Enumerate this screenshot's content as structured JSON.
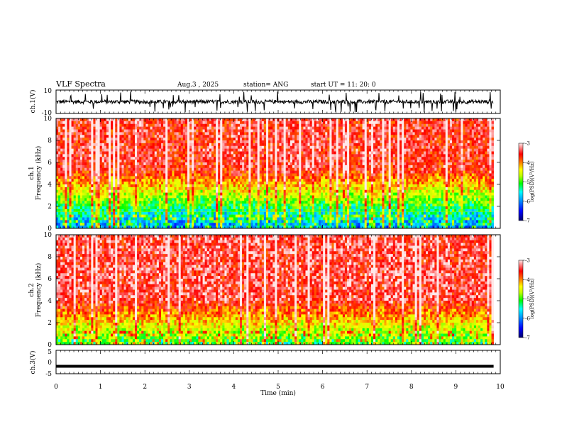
{
  "header": {
    "title": "VLF Spectra",
    "date": "Aug.3 , 2025",
    "station": "station= ANG",
    "start": "start UT = 11: 20: 0"
  },
  "chart_data": [
    {
      "name": "ch1-waveform",
      "type": "line",
      "title": "VLF Spectra",
      "ylabel": "ch.1(V)",
      "ylim": [
        -10,
        10
      ],
      "yticks": [
        "10",
        "-10"
      ],
      "xlim": [
        0,
        10
      ],
      "trace_color": "#000000",
      "mean_value": 0,
      "description": "ch.1 voltage waveform, noisy signal around 0 V with spikes"
    },
    {
      "name": "ch1-spectrogram",
      "type": "heatmap",
      "ylabel": "Frequency (kHz)",
      "channel_label": "ch.1",
      "ylim": [
        0,
        10
      ],
      "yticks": [
        "0",
        "2",
        "4",
        "6",
        "8",
        "10"
      ],
      "xlim": [
        0,
        9.85
      ],
      "colorbar": {
        "label": "log(PSD)(V²/Hz)",
        "range": [
          -7,
          -3
        ],
        "ticks": [
          "-3",
          "-4",
          "-5",
          "-6",
          "-7"
        ]
      },
      "dominant_high_freq": "red (about -3.5)",
      "dominant_low_freq": "green/blue (about -5 to -6.5)"
    },
    {
      "name": "ch2-spectrogram",
      "type": "heatmap",
      "ylabel": "Frequency (kHz)",
      "channel_label": "ch.2",
      "ylim": [
        0,
        10
      ],
      "yticks": [
        "0",
        "2",
        "4",
        "6",
        "8",
        "10"
      ],
      "xlim": [
        0,
        9.85
      ],
      "colorbar": {
        "label": "log(PSD)(V²/Hz)",
        "range": [
          -7,
          -3
        ],
        "ticks": [
          "-3",
          "-4",
          "-5",
          "-6",
          "-7"
        ]
      },
      "dominant_high_freq": "red (about -3.4)",
      "dominant_low_freq": "green/yellow (about -4.8 to -5.8)"
    },
    {
      "name": "ch3-waveform",
      "type": "line",
      "ylabel": "ch.3(V)",
      "ylim": [
        -5,
        5
      ],
      "yticks": [
        "5",
        "0",
        "-5"
      ],
      "xlim": [
        0,
        10
      ],
      "constant_value": -1.8,
      "trace_color": "#000000"
    }
  ],
  "xaxis": {
    "label": "Time (min)",
    "ticks": [
      "0",
      "1",
      "2",
      "3",
      "4",
      "5",
      "6",
      "7",
      "8",
      "9",
      "10"
    ],
    "range": [
      0,
      10
    ]
  },
  "colorscale": [
    "#00008b",
    "#0000ff",
    "#00a0ff",
    "#00ffff",
    "#00ff00",
    "#c0ff00",
    "#ffff00",
    "#ff8000",
    "#ff0000",
    "#ffe0e0"
  ]
}
